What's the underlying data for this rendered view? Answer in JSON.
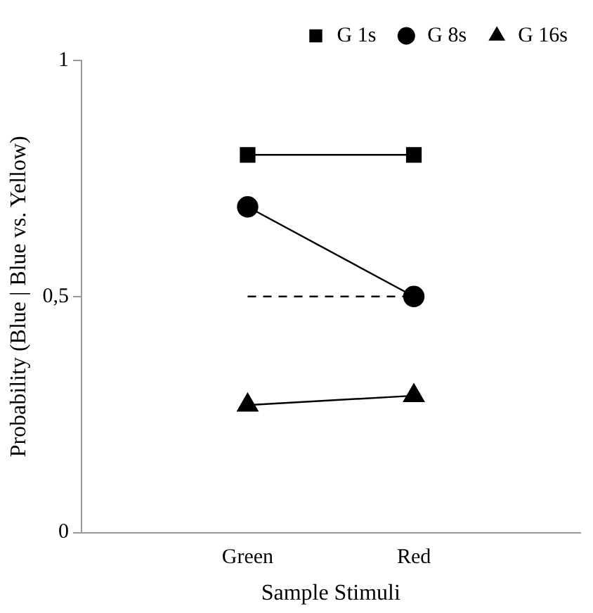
{
  "chart_data": {
    "type": "line",
    "xlabel": "Sample Stimuli",
    "ylabel": "Probability (Blue | Blue vs. Yellow)",
    "categories": [
      null,
      "Green",
      "Red",
      null
    ],
    "series": [
      {
        "name": "G 1s",
        "color": "#000000",
        "marker": "square",
        "values": [
          null,
          0.8,
          0.8,
          null
        ]
      },
      {
        "name": "G 8s",
        "color": "#000000",
        "marker": "circle",
        "values": [
          null,
          0.69,
          0.5,
          null
        ]
      },
      {
        "name": "G 16s",
        "color": "#000000",
        "marker": "triangle",
        "values": [
          null,
          0.27,
          0.29,
          null
        ]
      },
      {
        "color": "#000000",
        "marker": "none",
        "line_style": "dashed",
        "values": [
          null,
          0.5,
          0.5,
          null
        ]
      }
    ],
    "ylim": [
      0,
      1
    ],
    "yticks": [
      0,
      {
        "value": 0.5,
        "label": "0,5"
      },
      1
    ],
    "grid": false,
    "legend": "top right"
  }
}
